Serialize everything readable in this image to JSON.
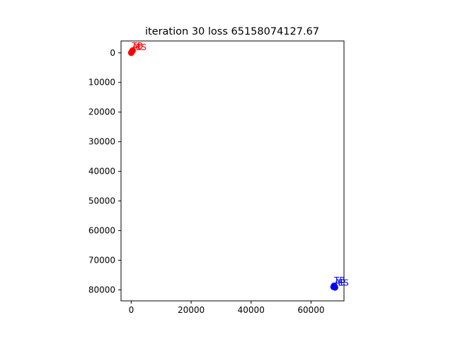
{
  "chart_data": {
    "type": "scatter",
    "title": "iteration 30 loss 65158074127.67",
    "xlabel": "",
    "ylabel": "",
    "xlim": [
      -3400,
      71000
    ],
    "ylim": [
      83700,
      -4000
    ],
    "y_inverted": true,
    "grid": false,
    "x_ticks": [
      0,
      20000,
      40000,
      60000
    ],
    "x_tick_labels": [
      "0",
      "20000",
      "40000",
      "60000"
    ],
    "y_ticks": [
      0,
      10000,
      20000,
      30000,
      40000,
      50000,
      60000,
      70000,
      80000
    ],
    "y_tick_labels": [
      "0",
      "10000",
      "20000",
      "30000",
      "40000",
      "50000",
      "60000",
      "70000",
      "80000"
    ],
    "series": [
      {
        "color": "#ff0000",
        "points": [
          {
            "x": 0,
            "y": 0
          },
          {
            "x": 150,
            "y": -250
          },
          {
            "x": 300,
            "y": -500
          },
          {
            "x": 500,
            "y": -800
          }
        ],
        "labels": [
          {
            "text": "TB",
            "x": 200,
            "y": -1400
          },
          {
            "text": "AL",
            "x": 250,
            "y": -1000
          },
          {
            "text": "ES",
            "x": 1500,
            "y": -900
          }
        ]
      },
      {
        "color": "#0000ff",
        "points": [
          {
            "x": 67500,
            "y": 79000
          },
          {
            "x": 67700,
            "y": 78600
          },
          {
            "x": 67900,
            "y": 78900
          },
          {
            "x": 68000,
            "y": 79200
          }
        ],
        "labels": [
          {
            "text": "TB",
            "x": 67700,
            "y": 77800
          },
          {
            "text": "AL",
            "x": 67800,
            "y": 78400
          },
          {
            "text": "ES",
            "x": 69000,
            "y": 78600
          }
        ]
      }
    ]
  }
}
